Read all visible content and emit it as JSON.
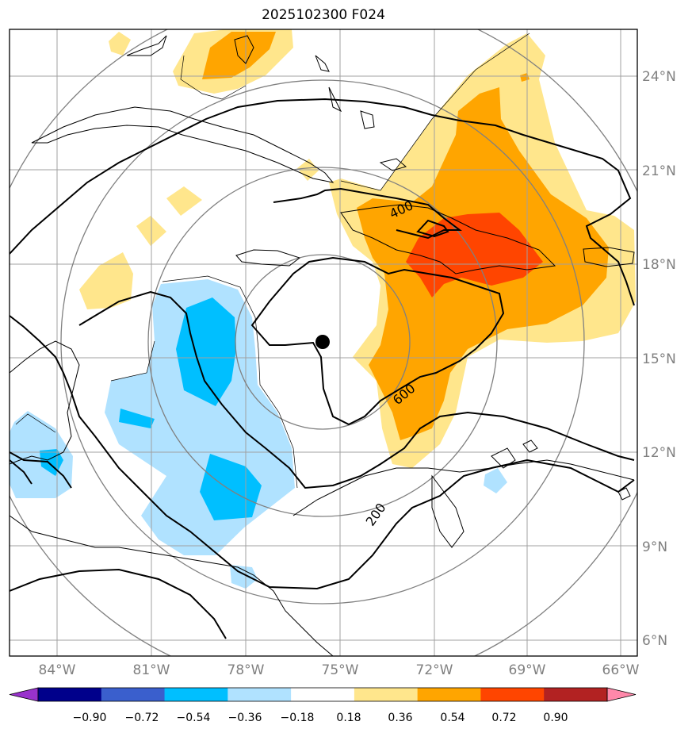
{
  "title": "2025102300 F024",
  "axes": {
    "lon_ticks": [
      "84°W",
      "81°W",
      "78°W",
      "75°W",
      "72°W",
      "69°W",
      "66°W"
    ],
    "lat_ticks": [
      "24°N",
      "21°N",
      "18°N",
      "15°N",
      "12°N",
      "9°N",
      "6°N"
    ]
  },
  "contour_labels": [
    "400",
    "600",
    "200"
  ],
  "colorbar": {
    "ticks": [
      "−0.90",
      "−0.72",
      "−0.54",
      "−0.36",
      "−0.18",
      "0.18",
      "0.36",
      "0.54",
      "0.72",
      "0.90"
    ],
    "colors": [
      "#9932cc",
      "#00008b",
      "#3a5fcd",
      "#00bfff",
      "#b0e2ff",
      "#ffffff",
      "#ffe68c",
      "#ffa500",
      "#ff4500",
      "#b22222",
      "#ff88aa"
    ]
  },
  "center_marker": "storm-center",
  "colors": {
    "light_yellow": "#ffe68c",
    "orange": "#ffa500",
    "red_orange": "#ff4500",
    "light_blue": "#b0e2ff",
    "deep_sky_blue": "#00bfff",
    "grid": "#a0a0a0",
    "range_rings": "#808080"
  }
}
